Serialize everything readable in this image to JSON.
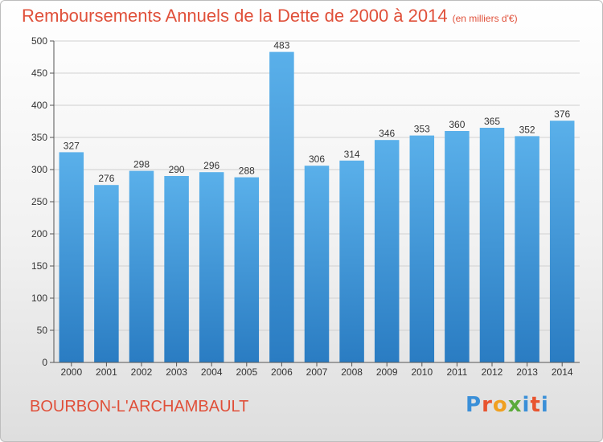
{
  "title": "Remboursements Annuels de la Dette de 2000 à 2014",
  "subtitle": "(en milliers d'€)",
  "city": "BOURBON-L'ARCHAMBAULT",
  "logo": {
    "letters": [
      "P",
      "r",
      "o",
      "x",
      "i",
      "t",
      "i"
    ],
    "colors": [
      "#3a8fd8",
      "#e8542f",
      "#f0a020",
      "#5aaa3a",
      "#3a8fd8",
      "#e8542f",
      "#3a8fd8"
    ]
  },
  "colors": {
    "bar_top": "#5ab0ea",
    "bar_bottom": "#2a7cc2",
    "title": "#e0503a",
    "grid": "#d0d0d0"
  },
  "chart_data": {
    "type": "bar",
    "categories": [
      "2000",
      "2001",
      "2002",
      "2003",
      "2004",
      "2005",
      "2006",
      "2007",
      "2008",
      "2009",
      "2010",
      "2011",
      "2012",
      "2013",
      "2014"
    ],
    "values": [
      327,
      276,
      298,
      290,
      296,
      288,
      483,
      306,
      314,
      346,
      353,
      360,
      365,
      352,
      376
    ],
    "title": "Remboursements Annuels de la Dette de 2000 à 2014",
    "xlabel": "",
    "ylabel": "",
    "ylim": [
      0,
      500
    ],
    "yticks": [
      0,
      50,
      100,
      150,
      200,
      250,
      300,
      350,
      400,
      450,
      500
    ],
    "grid": true
  }
}
